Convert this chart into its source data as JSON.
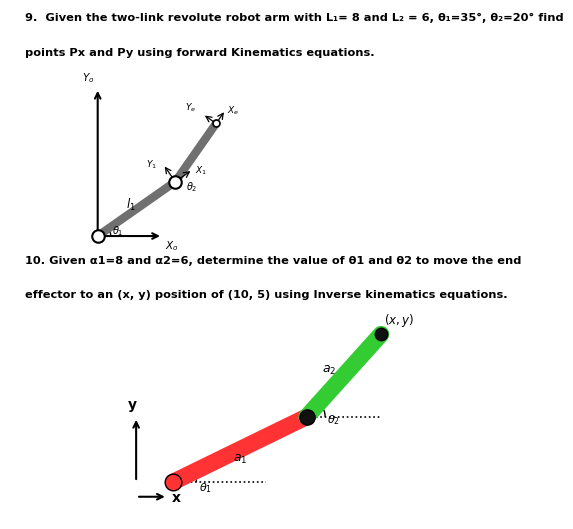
{
  "bg_color": "#ffffff",
  "title1_line1": "9.  Given the two-link revolute robot arm with L₁= 8 and L₂ = 6, θ₁=35°, θ₂=20° find",
  "title1_line2": "points Px and Py using forward Kinematics equations.",
  "title2_line1": "10. Given α1=8 and α2=6, determine the value of θ1 and θ2 to move the end",
  "title2_line2": "effector to an (x, y) position of (10, 5) using Inverse kinematics equations.",
  "diag1": {
    "theta1_deg": 35,
    "L1": 8,
    "theta2_deg": 20,
    "L2": 6,
    "link_color": "#707070",
    "axis_color": "#000000"
  },
  "diag2": {
    "theta1_deg": 26,
    "a1": 8,
    "theta2_deg": 22,
    "a2": 6,
    "link1_color": "#ff3333",
    "link2_color": "#33cc33",
    "joint_color": "#111111",
    "axis_color": "#000000"
  }
}
